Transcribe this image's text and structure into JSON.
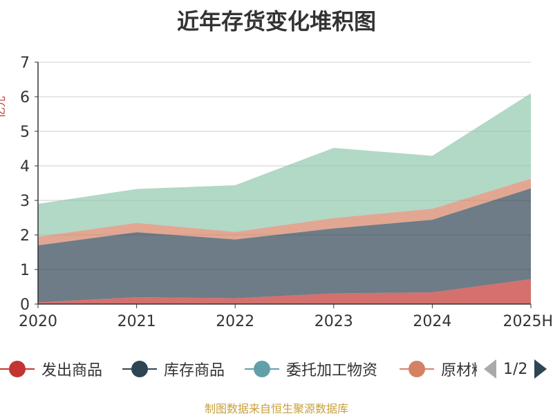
{
  "chart_data": {
    "type": "area",
    "stacked": true,
    "title": "近年存货变化堆积图",
    "ylabel": "亿元",
    "ylim": [
      0,
      7
    ],
    "yticks": [
      0,
      1,
      2,
      3,
      4,
      5,
      6,
      7
    ],
    "categories": [
      "2020",
      "2021",
      "2022",
      "2023",
      "2024",
      "2025H"
    ],
    "grid": true,
    "legend_position": "bottom",
    "series": [
      {
        "name": "发出商品",
        "color": "#c23531",
        "values": [
          0.05,
          0.2,
          0.17,
          0.31,
          0.34,
          0.72
        ]
      },
      {
        "name": "库存商品",
        "color": "#2f4554",
        "values": [
          1.65,
          1.88,
          1.7,
          1.88,
          2.1,
          2.63
        ]
      },
      {
        "name": "委托加工物资",
        "color": "#61a0a8",
        "values": [
          0.0,
          0.0,
          0.0,
          0.0,
          0.0,
          0.0
        ]
      },
      {
        "name": "原材料",
        "color": "#d48265",
        "values": [
          0.25,
          0.27,
          0.22,
          0.3,
          0.32,
          0.28
        ]
      },
      {
        "name": "",
        "color": "#91c7ae",
        "values": [
          0.95,
          0.98,
          1.35,
          2.03,
          1.53,
          2.47
        ]
      }
    ]
  },
  "legend": {
    "items": [
      {
        "label": "发出商品",
        "color": "#c23531"
      },
      {
        "label": "库存商品",
        "color": "#2f4554"
      },
      {
        "label": "委托加工物资",
        "color": "#61a0a8"
      },
      {
        "label": "原材料",
        "color": "#d48265"
      }
    ],
    "page": "1/2"
  },
  "source": "制图数据来自恒生聚源数据库"
}
